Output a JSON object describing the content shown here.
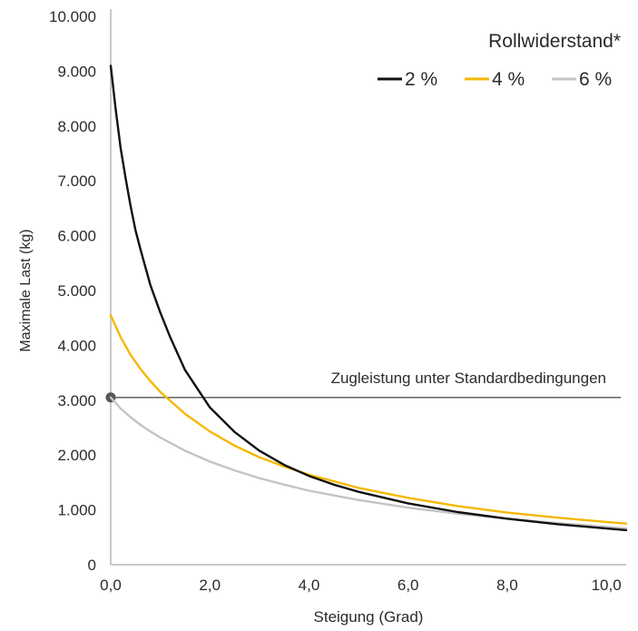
{
  "chart_data": {
    "type": "line",
    "title": "",
    "xlabel": "Steigung (Grad)",
    "ylabel": "Maximale Last (kg)",
    "xlim": [
      0,
      10.4
    ],
    "ylim": [
      0,
      10000
    ],
    "x_ticks": [
      0,
      2,
      4,
      6,
      8,
      10
    ],
    "x_tick_labels": [
      "0,0",
      "2,0",
      "4,0",
      "6,0",
      "8,0",
      "10,0"
    ],
    "y_ticks": [
      0,
      1000,
      2000,
      3000,
      4000,
      5000,
      6000,
      7000,
      8000,
      9000,
      10000
    ],
    "y_tick_labels": [
      "0",
      "1.000",
      "2.000",
      "3.000",
      "4.000",
      "5.000",
      "6.000",
      "7.000",
      "8.000",
      "9.000",
      "10.000"
    ],
    "grid": false,
    "legend": {
      "title": "Rollwiderstand*",
      "placement": "top-right"
    },
    "series": [
      {
        "name": "2 %",
        "color": "#111111",
        "x": [
          0,
          0.1,
          0.2,
          0.3,
          0.4,
          0.5,
          0.6,
          0.8,
          1.0,
          1.2,
          1.5,
          2.0,
          2.5,
          3.0,
          3.5,
          4.0,
          4.5,
          5.0,
          6.0,
          7.0,
          8.0,
          9.0,
          10.0,
          10.4
        ],
        "values": [
          9100,
          8300,
          7600,
          7050,
          6550,
          6100,
          5750,
          5100,
          4600,
          4150,
          3550,
          2870,
          2420,
          2080,
          1820,
          1620,
          1460,
          1330,
          1120,
          960,
          840,
          740,
          660,
          630
        ]
      },
      {
        "name": "4 %",
        "color": "#f5b800",
        "x": [
          0,
          0.2,
          0.4,
          0.6,
          0.8,
          1.0,
          1.5,
          2.0,
          2.5,
          3.0,
          3.5,
          4.0,
          5.0,
          6.0,
          7.0,
          8.0,
          9.0,
          10.0,
          10.4
        ],
        "values": [
          4550,
          4150,
          3830,
          3570,
          3350,
          3150,
          2750,
          2430,
          2170,
          1960,
          1790,
          1640,
          1400,
          1220,
          1070,
          950,
          860,
          780,
          750
        ]
      },
      {
        "name": "6 %",
        "color": "#c4c4c4",
        "x": [
          0,
          0.2,
          0.4,
          0.6,
          0.8,
          1.0,
          1.5,
          2.0,
          2.5,
          3.0,
          3.5,
          4.0,
          5.0,
          6.0,
          7.0,
          8.0,
          9.0,
          10.0,
          10.4
        ],
        "values": [
          3050,
          2850,
          2690,
          2550,
          2430,
          2320,
          2080,
          1880,
          1720,
          1580,
          1460,
          1350,
          1180,
          1040,
          930,
          840,
          760,
          690,
          660
        ]
      }
    ],
    "reference_line": {
      "label": "Zugleistung unter Standardbedingungen",
      "y": 3050,
      "color": "#555555"
    }
  }
}
